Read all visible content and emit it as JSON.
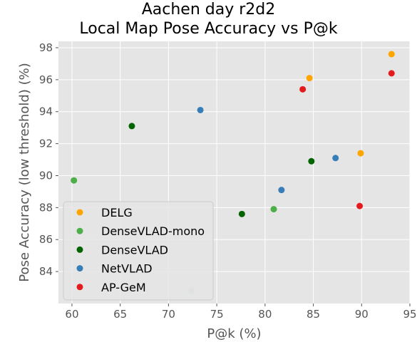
{
  "chart_data": {
    "type": "scatter",
    "title": [
      "Aachen day r2d2",
      "Local Map Pose Accuracy vs P@k"
    ],
    "xlabel": "P@k (%)",
    "ylabel": "Pose Accuracy (low threshold) (%)",
    "xlim": [
      58.6,
      95.0
    ],
    "ylim": [
      82.0,
      98.4
    ],
    "xticks": [
      60,
      65,
      70,
      75,
      80,
      85,
      90,
      95
    ],
    "yticks": [
      84,
      86,
      88,
      90,
      92,
      94,
      96,
      98
    ],
    "grid": true,
    "legend_position": "lower-left",
    "series": [
      {
        "name": "DELG",
        "color": "#ffa500",
        "points": [
          [
            84.6,
            96.1
          ],
          [
            89.9,
            91.4
          ],
          [
            93.1,
            97.6
          ]
        ]
      },
      {
        "name": "DenseVLAD-mono",
        "color": "#4daf4a",
        "points": [
          [
            60.2,
            89.7
          ],
          [
            72.4,
            82.8
          ],
          [
            80.9,
            87.9
          ]
        ],
        "alphas": [
          1,
          0.3,
          1
        ]
      },
      {
        "name": "DenseVLAD",
        "color": "#006400",
        "points": [
          [
            66.2,
            93.1
          ],
          [
            77.6,
            87.6
          ],
          [
            84.8,
            90.9
          ]
        ]
      },
      {
        "name": "NetVLAD",
        "color": "#377eb8",
        "points": [
          [
            73.3,
            94.1
          ],
          [
            81.7,
            89.1
          ],
          [
            87.3,
            91.1
          ]
        ]
      },
      {
        "name": "AP-GeM",
        "color": "#e41a1c",
        "points": [
          [
            83.9,
            95.4
          ],
          [
            89.8,
            88.1
          ],
          [
            93.1,
            96.4
          ]
        ]
      }
    ]
  }
}
